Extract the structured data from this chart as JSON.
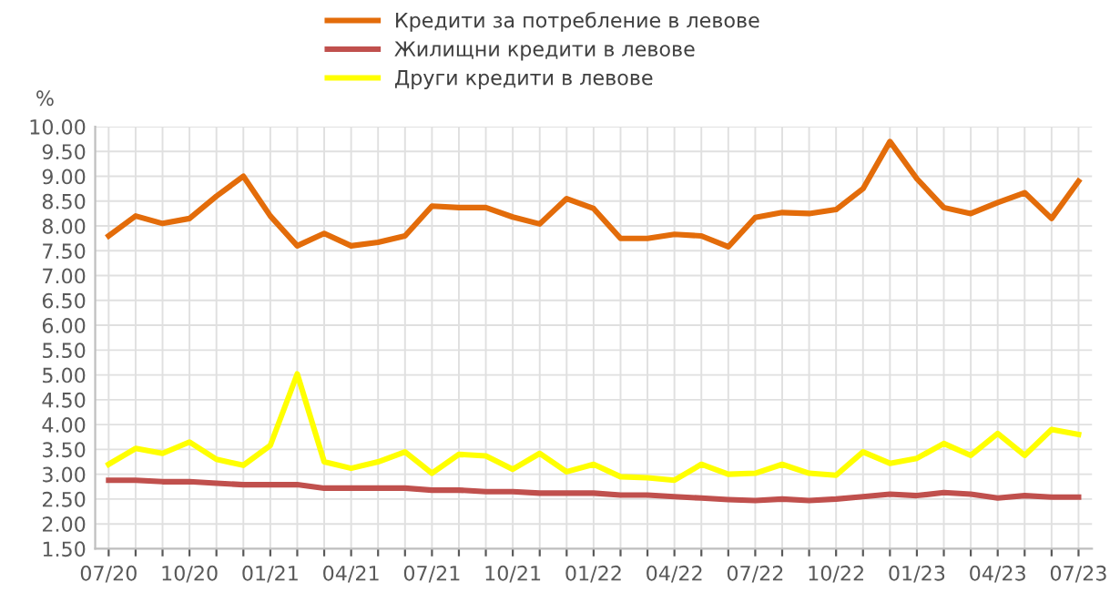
{
  "chart_data": {
    "type": "line",
    "ylabel": "%",
    "categories": [
      "07/20",
      null,
      null,
      "10/20",
      null,
      null,
      "01/21",
      null,
      null,
      "04/21",
      null,
      null,
      "07/21",
      null,
      null,
      "10/21",
      null,
      null,
      "01/22",
      null,
      null,
      "04/22",
      null,
      null,
      "07/22",
      null,
      null,
      "10/22",
      null,
      null,
      "01/23",
      null,
      null,
      "04/23",
      null,
      null,
      "07/23"
    ],
    "series": [
      {
        "name": "Кредити за потребление в левове",
        "color": "#e36c0a",
        "values": [
          7.8,
          8.2,
          8.05,
          8.15,
          8.6,
          9.0,
          8.2,
          7.6,
          7.85,
          7.6,
          7.67,
          7.8,
          8.4,
          8.37,
          8.37,
          8.18,
          8.04,
          8.55,
          8.35,
          7.75,
          7.75,
          7.83,
          7.8,
          7.58,
          8.17,
          8.27,
          8.25,
          8.33,
          8.75,
          9.7,
          8.95,
          8.37,
          8.25,
          8.47,
          8.67,
          8.15,
          8.9
        ]
      },
      {
        "name": "Жилищни кредити в левове",
        "color": "#c0504d",
        "values": [
          2.88,
          2.88,
          2.85,
          2.85,
          2.82,
          2.79,
          2.79,
          2.79,
          2.72,
          2.72,
          2.72,
          2.72,
          2.68,
          2.68,
          2.65,
          2.65,
          2.62,
          2.62,
          2.62,
          2.58,
          2.58,
          2.55,
          2.52,
          2.49,
          2.47,
          2.5,
          2.47,
          2.5,
          2.55,
          2.6,
          2.57,
          2.63,
          2.6,
          2.52,
          2.57,
          2.54,
          2.54
        ]
      },
      {
        "name": "Други кредити в левове",
        "color": "#ffff00",
        "values": [
          3.2,
          3.52,
          3.42,
          3.65,
          3.3,
          3.18,
          3.58,
          5.02,
          3.25,
          3.12,
          3.25,
          3.45,
          3.02,
          3.4,
          3.37,
          3.1,
          3.42,
          3.05,
          3.2,
          2.95,
          2.93,
          2.88,
          3.2,
          3.0,
          3.02,
          3.2,
          3.02,
          2.98,
          3.45,
          3.22,
          3.32,
          3.62,
          3.38,
          3.82,
          3.38,
          3.9,
          3.8
        ]
      }
    ],
    "ylim": [
      1.5,
      10.0
    ],
    "yticks": [
      {
        "value": 1.5,
        "label": "1.50"
      },
      {
        "value": 2.0,
        "label": "2.00"
      },
      {
        "value": 2.5,
        "label": "2.50"
      },
      {
        "value": 3.0,
        "label": "3.00"
      },
      {
        "value": 3.5,
        "label": "3.50"
      },
      {
        "value": 4.0,
        "label": "4.00"
      },
      {
        "value": 4.5,
        "label": "4.50"
      },
      {
        "value": 5.0,
        "label": "5.00"
      },
      {
        "value": 5.5,
        "label": "5.50"
      },
      {
        "value": 6.0,
        "label": "6.00"
      },
      {
        "value": 6.5,
        "label": "6.50"
      },
      {
        "value": 7.0,
        "label": "7.00"
      },
      {
        "value": 7.5,
        "label": "7.50"
      },
      {
        "value": 8.0,
        "label": "8.00"
      },
      {
        "value": 8.5,
        "label": "8.50"
      },
      {
        "value": 9.0,
        "label": "9.00"
      },
      {
        "value": 9.5,
        "label": "9.50"
      },
      {
        "value": 10.0,
        "label": "10.00"
      }
    ],
    "grid": true,
    "legend": "top",
    "marker": "none",
    "line_style": "solid"
  }
}
